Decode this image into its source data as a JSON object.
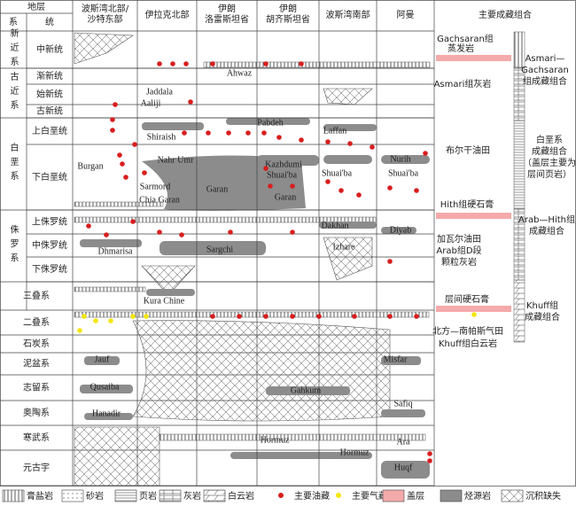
{
  "header": {
    "stratum": "地层",
    "system": "系",
    "series": "统",
    "columns": [
      [
        "波斯湾北部/",
        "沙特东部"
      ],
      [
        "伊拉克北部"
      ],
      [
        "伊朗",
        "洛雷斯坦省"
      ],
      [
        "伊朗",
        "胡齐斯坦省"
      ],
      [
        "波斯湾南部"
      ],
      [
        "阿曼"
      ],
      [
        "主要成藏组合"
      ]
    ]
  },
  "systems": [
    {
      "name": "新近系",
      "series": [
        "中新统"
      ]
    },
    {
      "name": "古近系",
      "series": [
        "渐新统",
        "始新统",
        "古新统"
      ]
    },
    {
      "name": "白垩系",
      "series": [
        "上白垩统",
        "下白垩统"
      ]
    },
    {
      "name": "侏罗系",
      "series": [
        "上侏罗统",
        "中侏罗统",
        "下侏罗统"
      ]
    },
    {
      "name": "三叠系",
      "series": []
    },
    {
      "name": "二叠系",
      "series": []
    },
    {
      "name": "石炭系",
      "series": []
    },
    {
      "name": "泥盆系",
      "series": []
    },
    {
      "name": "志留系",
      "series": []
    },
    {
      "name": "奥陶系",
      "series": []
    },
    {
      "name": "寒武系",
      "series": []
    },
    {
      "name": "元古宇",
      "series": []
    }
  ],
  "formations": [
    "Ahwaz",
    "Jaddala",
    "Aaliji",
    "Pabdeh",
    "Laffan",
    "Shiraish",
    "Nahr Umr",
    "Burgan",
    "Kazhdumi",
    "Nurih",
    "Shuai'ba",
    "Shuai'ba",
    "Shuai'ba",
    "Sarmord",
    "Garan",
    "Chia Garan",
    "Garan",
    "Dakhan",
    "Diyab",
    "Dhmarisa",
    "Sargchi",
    "Izhare",
    "Kura Chine",
    "Jauf",
    "Misfar",
    "Qusaiba",
    "Gahkum",
    "Safiq",
    "Hanadir",
    "Hormuz",
    "Ara",
    "Hormuz",
    "Huqf"
  ],
  "notes": [
    "Gachsaran组",
    "蒸发岩",
    "Asmari组灰岩",
    "布尔干油田",
    "Hith组硬石膏",
    "加瓦尔油田",
    "Arab组D段",
    "颗粒灰岩",
    "层间硬石膏",
    "北方—南帕斯气田",
    "Khuff组白云岩"
  ],
  "plays": [
    [
      "Asmari—",
      "Gachsaran",
      "组成藏组合"
    ],
    [
      "白垩系",
      "成藏组合",
      "（盖层主要为",
      "层间页岩）"
    ],
    [
      "Arab—Hith组",
      "成藏组合"
    ],
    [
      "Khuff组",
      "成藏组合"
    ]
  ],
  "legend": [
    "膏盐岩",
    "砂岩",
    "页岩",
    "灰岩",
    "白云岩",
    "主要油藏",
    "主要气藏",
    "盖层",
    "烃源岩",
    "沉积缺失"
  ]
}
